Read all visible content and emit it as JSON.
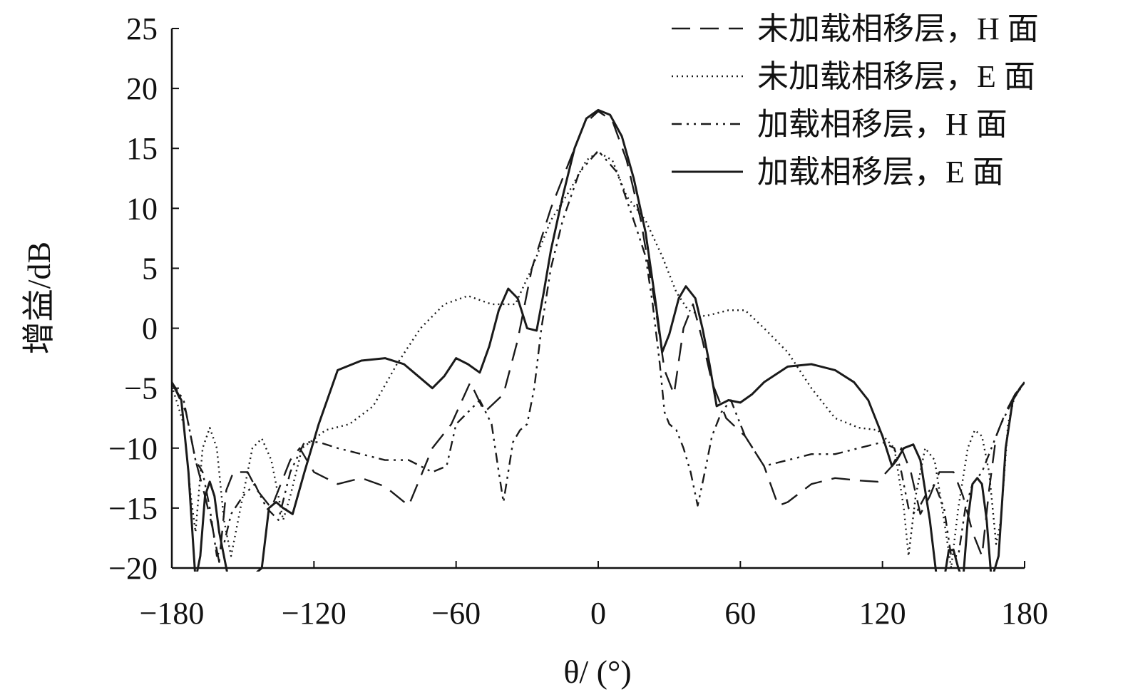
{
  "chart_data": {
    "type": "line",
    "xlabel": "θ/ (°)",
    "ylabel": "增益/dB",
    "xlim": [
      -180,
      180
    ],
    "ylim": [
      -20,
      25
    ],
    "xticks": [
      "−180",
      "−120",
      "−60",
      "0",
      "60",
      "120",
      "180"
    ],
    "xtick_values": [
      -180,
      -120,
      -60,
      0,
      60,
      120,
      180
    ],
    "yticks": [
      "25",
      "20",
      "15",
      "10",
      "5",
      "0",
      "−5",
      "−10",
      "−15",
      "−20"
    ],
    "ytick_values": [
      25,
      20,
      15,
      10,
      5,
      0,
      -5,
      -10,
      -15,
      -20
    ],
    "legend_position": "top-right",
    "grid": false,
    "series": [
      {
        "name": "未加载相移层，H 面",
        "style": "dashed",
        "points": [
          [
            -180,
            -4.5
          ],
          [
            -174,
            -7
          ],
          [
            -170,
            -11
          ],
          [
            -166,
            -14
          ],
          [
            -163,
            -16.5
          ],
          [
            -160,
            -19.5
          ],
          [
            -157,
            -13.5
          ],
          [
            -154,
            -12
          ],
          [
            -148,
            -12
          ],
          [
            -144,
            -13.5
          ],
          [
            -138,
            -15
          ],
          [
            -130,
            -11
          ],
          [
            -126,
            -10
          ],
          [
            -120,
            -12
          ],
          [
            -110,
            -13
          ],
          [
            -100,
            -12.5
          ],
          [
            -90,
            -13.2
          ],
          [
            -80,
            -14.8
          ],
          [
            -70,
            -10
          ],
          [
            -62,
            -8
          ],
          [
            -54,
            -4.5
          ],
          [
            -48,
            -7
          ],
          [
            -40,
            -5.5
          ],
          [
            -34,
            -1
          ],
          [
            -28,
            5
          ],
          [
            -20,
            10
          ],
          [
            -12,
            14
          ],
          [
            -6,
            17
          ],
          [
            0,
            18.1
          ],
          [
            6,
            17.3
          ],
          [
            12,
            14
          ],
          [
            18,
            9
          ],
          [
            24,
            2
          ],
          [
            28,
            -3.5
          ],
          [
            32,
            -5.5
          ],
          [
            36,
            0
          ],
          [
            40,
            2
          ],
          [
            44,
            -1
          ],
          [
            48,
            -4.5
          ],
          [
            54,
            -7.5
          ],
          [
            62,
            -9
          ],
          [
            70,
            -11.5
          ],
          [
            76,
            -14.8
          ],
          [
            80,
            -14.5
          ],
          [
            90,
            -13
          ],
          [
            100,
            -12.5
          ],
          [
            110,
            -12.7
          ],
          [
            118,
            -12.8
          ],
          [
            124,
            -11.5
          ],
          [
            128,
            -10
          ],
          [
            132,
            -12
          ],
          [
            136,
            -15.5
          ],
          [
            140,
            -14
          ],
          [
            144,
            -12
          ],
          [
            150,
            -12
          ],
          [
            154,
            -14
          ],
          [
            158,
            -17
          ],
          [
            162,
            -19
          ],
          [
            165,
            -13.5
          ],
          [
            168,
            -9
          ],
          [
            172,
            -7
          ],
          [
            176,
            -5.5
          ],
          [
            180,
            -4.5
          ]
        ]
      },
      {
        "name": "未加载相移层，E 面",
        "style": "dotted",
        "points": [
          [
            -180,
            -4.8
          ],
          [
            -175,
            -8
          ],
          [
            -172,
            -14
          ],
          [
            -170,
            -17
          ],
          [
            -167,
            -10
          ],
          [
            -164,
            -8.3
          ],
          [
            -161,
            -10
          ],
          [
            -158,
            -16
          ],
          [
            -155,
            -19
          ],
          [
            -151,
            -15
          ],
          [
            -146,
            -10
          ],
          [
            -142,
            -9.2
          ],
          [
            -138,
            -11
          ],
          [
            -133,
            -16
          ],
          [
            -130,
            -14
          ],
          [
            -125,
            -10
          ],
          [
            -115,
            -8.5
          ],
          [
            -105,
            -8
          ],
          [
            -95,
            -6.5
          ],
          [
            -85,
            -3
          ],
          [
            -75,
            0
          ],
          [
            -65,
            2
          ],
          [
            -55,
            2.7
          ],
          [
            -45,
            2
          ],
          [
            -35,
            2
          ],
          [
            -28,
            5
          ],
          [
            -20,
            9
          ],
          [
            -12,
            11.5
          ],
          [
            -5,
            14
          ],
          [
            0,
            14.7
          ],
          [
            6,
            14
          ],
          [
            12,
            11
          ],
          [
            20,
            9
          ],
          [
            27,
            6
          ],
          [
            33,
            3
          ],
          [
            38,
            1.5
          ],
          [
            45,
            1
          ],
          [
            55,
            1.5
          ],
          [
            62,
            1.5
          ],
          [
            70,
            0
          ],
          [
            80,
            -2
          ],
          [
            90,
            -5
          ],
          [
            100,
            -7.5
          ],
          [
            110,
            -8.3
          ],
          [
            118,
            -8.5
          ],
          [
            125,
            -10
          ],
          [
            129,
            -15
          ],
          [
            131,
            -19
          ],
          [
            134,
            -14
          ],
          [
            138,
            -10
          ],
          [
            142,
            -11
          ],
          [
            146,
            -16
          ],
          [
            149,
            -20
          ],
          [
            152,
            -15
          ],
          [
            156,
            -10
          ],
          [
            159,
            -8.5
          ],
          [
            162,
            -9
          ],
          [
            165,
            -12
          ],
          [
            168,
            -18
          ],
          [
            170,
            -16
          ],
          [
            173,
            -8
          ],
          [
            176,
            -5.5
          ],
          [
            180,
            -4.5
          ]
        ]
      },
      {
        "name": "加载相移层，H 面",
        "style": "dashdotdot",
        "points": [
          [
            -180,
            -4.5
          ],
          [
            -175,
            -6
          ],
          [
            -170,
            -11
          ],
          [
            -167,
            -12
          ],
          [
            -164,
            -15
          ],
          [
            -161,
            -19
          ],
          [
            -158,
            -18
          ],
          [
            -155,
            -15.5
          ],
          [
            -150,
            -14
          ],
          [
            -145,
            -13
          ],
          [
            -140,
            -15
          ],
          [
            -135,
            -16
          ],
          [
            -130,
            -12
          ],
          [
            -124,
            -9.5
          ],
          [
            -118,
            -9.5
          ],
          [
            -110,
            -10
          ],
          [
            -100,
            -10.5
          ],
          [
            -90,
            -11
          ],
          [
            -80,
            -11
          ],
          [
            -70,
            -12
          ],
          [
            -64,
            -11.5
          ],
          [
            -60,
            -8
          ],
          [
            -55,
            -7
          ],
          [
            -50,
            -6
          ],
          [
            -45,
            -8
          ],
          [
            -42,
            -12
          ],
          [
            -40,
            -14.5
          ],
          [
            -38,
            -12
          ],
          [
            -36,
            -9.5
          ],
          [
            -33,
            -8.5
          ],
          [
            -30,
            -8
          ],
          [
            -27,
            -5
          ],
          [
            -24,
            0
          ],
          [
            -20,
            5
          ],
          [
            -15,
            9
          ],
          [
            -8,
            13
          ],
          [
            0,
            14.8
          ],
          [
            8,
            13
          ],
          [
            15,
            9
          ],
          [
            20,
            6
          ],
          [
            23,
            2
          ],
          [
            26,
            -3
          ],
          [
            28,
            -7
          ],
          [
            30,
            -8
          ],
          [
            33,
            -8.5
          ],
          [
            36,
            -10
          ],
          [
            39,
            -12
          ],
          [
            42,
            -14.8
          ],
          [
            45,
            -12
          ],
          [
            48,
            -9
          ],
          [
            52,
            -7
          ],
          [
            56,
            -6
          ],
          [
            62,
            -9
          ],
          [
            70,
            -11.5
          ],
          [
            80,
            -11
          ],
          [
            90,
            -10.5
          ],
          [
            100,
            -10.5
          ],
          [
            110,
            -10
          ],
          [
            120,
            -9.5
          ],
          [
            125,
            -10
          ],
          [
            128,
            -12
          ],
          [
            131,
            -15
          ],
          [
            134,
            -15.5
          ],
          [
            138,
            -14
          ],
          [
            142,
            -13
          ],
          [
            146,
            -15
          ],
          [
            149,
            -19
          ],
          [
            152,
            -19
          ],
          [
            155,
            -15
          ],
          [
            158,
            -13
          ],
          [
            162,
            -12
          ],
          [
            166,
            -10
          ],
          [
            170,
            -8
          ],
          [
            175,
            -6
          ],
          [
            180,
            -4.5
          ]
        ]
      },
      {
        "name": "加载相移层，E 面",
        "style": "solid",
        "points": [
          [
            -180,
            -4.5
          ],
          [
            -176,
            -6
          ],
          [
            -173,
            -12
          ],
          [
            -170,
            -21
          ],
          [
            -168,
            -19
          ],
          [
            -166,
            -14
          ],
          [
            -164,
            -12.8
          ],
          [
            -162,
            -14
          ],
          [
            -160,
            -17
          ],
          [
            -156,
            -21
          ],
          [
            -148,
            -21
          ],
          [
            -142,
            -20
          ],
          [
            -139,
            -15
          ],
          [
            -136,
            -14.5
          ],
          [
            -133,
            -15
          ],
          [
            -129,
            -15.5
          ],
          [
            -124,
            -12
          ],
          [
            -118,
            -8
          ],
          [
            -110,
            -3.5
          ],
          [
            -100,
            -2.7
          ],
          [
            -90,
            -2.5
          ],
          [
            -82,
            -3
          ],
          [
            -76,
            -4
          ],
          [
            -70,
            -5
          ],
          [
            -65,
            -4
          ],
          [
            -60,
            -2.5
          ],
          [
            -55,
            -3
          ],
          [
            -50,
            -3.7
          ],
          [
            -46,
            -1.5
          ],
          [
            -42,
            1.5
          ],
          [
            -38,
            3.3
          ],
          [
            -34,
            2.5
          ],
          [
            -30,
            0
          ],
          [
            -26,
            -0.2
          ],
          [
            -23,
            3
          ],
          [
            -20,
            6.5
          ],
          [
            -15,
            11
          ],
          [
            -10,
            15
          ],
          [
            -5,
            17.5
          ],
          [
            0,
            18.2
          ],
          [
            5,
            17.8
          ],
          [
            10,
            16
          ],
          [
            15,
            12.5
          ],
          [
            20,
            8
          ],
          [
            24,
            2.5
          ],
          [
            27,
            -2
          ],
          [
            30,
            -0.5
          ],
          [
            34,
            2.5
          ],
          [
            37,
            3.5
          ],
          [
            41,
            2.5
          ],
          [
            44,
            0
          ],
          [
            47,
            -3
          ],
          [
            50,
            -6.5
          ],
          [
            55,
            -6
          ],
          [
            60,
            -6.2
          ],
          [
            65,
            -5.5
          ],
          [
            70,
            -4.5
          ],
          [
            80,
            -3.2
          ],
          [
            90,
            -3
          ],
          [
            100,
            -3.5
          ],
          [
            108,
            -4.5
          ],
          [
            114,
            -6
          ],
          [
            120,
            -9
          ],
          [
            124,
            -11.5
          ],
          [
            126,
            -11
          ],
          [
            129,
            -10
          ],
          [
            133,
            -9.7
          ],
          [
            136,
            -11
          ],
          [
            140,
            -16
          ],
          [
            143,
            -21
          ],
          [
            146,
            -21
          ],
          [
            148,
            -18.5
          ],
          [
            150,
            -18.5
          ],
          [
            152,
            -20
          ],
          [
            154,
            -21
          ],
          [
            156,
            -16
          ],
          [
            158,
            -13
          ],
          [
            160,
            -12.5
          ],
          [
            162,
            -13
          ],
          [
            164,
            -16
          ],
          [
            166,
            -21
          ],
          [
            169,
            -19
          ],
          [
            172,
            -10
          ],
          [
            175,
            -6
          ],
          [
            178,
            -5
          ],
          [
            180,
            -4.5
          ]
        ]
      }
    ]
  }
}
